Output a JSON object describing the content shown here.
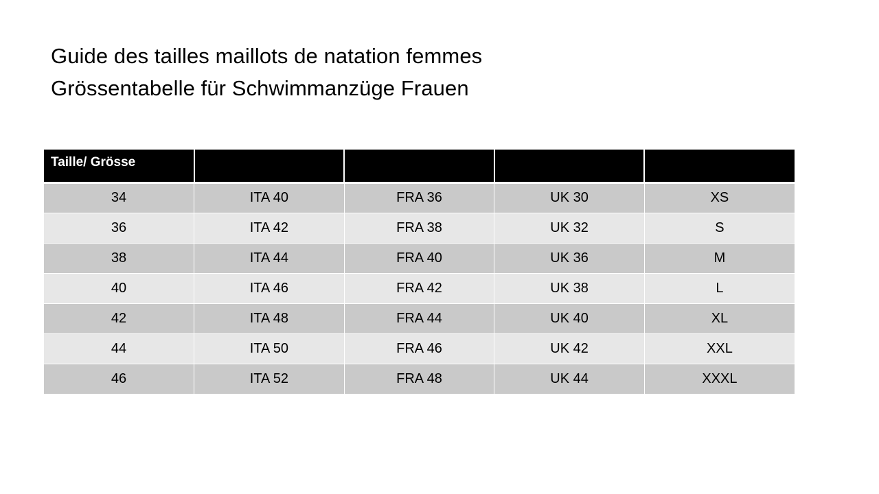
{
  "title": {
    "line1": "Guide des tailles maillots de natation femmes",
    "line2": "Grössentabelle für Schwimmanzüge Frauen"
  },
  "table": {
    "headers": [
      "Taille/ Grösse",
      "",
      "",
      "",
      ""
    ],
    "rows": [
      [
        "34",
        "ITA 40",
        "FRA 36",
        "UK 30",
        "XS"
      ],
      [
        "36",
        "ITA 42",
        "FRA 38",
        "UK 32",
        "S"
      ],
      [
        "38",
        "ITA 44",
        "FRA 40",
        "UK 36",
        "M"
      ],
      [
        "40",
        "ITA 46",
        "FRA 42",
        "UK 38",
        "L"
      ],
      [
        "42",
        "ITA 48",
        "FRA 44",
        "UK 40",
        "XL"
      ],
      [
        "44",
        "ITA 50",
        "FRA 46",
        "UK 42",
        "XXL"
      ],
      [
        "46",
        "ITA 52",
        "FRA 48",
        "UK 44",
        "XXXL"
      ]
    ]
  },
  "colors": {
    "header_bg": "#000000",
    "header_text": "#ffffff",
    "row_dark": "#c9c9c9",
    "row_light": "#e7e7e7"
  }
}
